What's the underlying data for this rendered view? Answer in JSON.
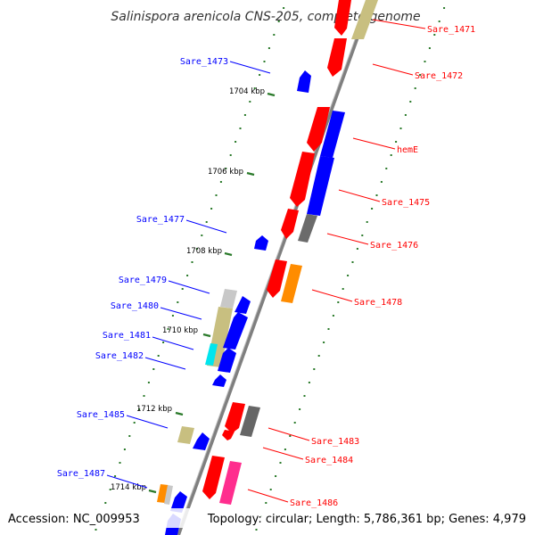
{
  "title": "Salinispora arenicola CNS-205, complete genome",
  "accession": "Accession: NC_009953",
  "summary": "Topology: circular; Length: 5,786,361 bp; Genes: 4,979",
  "ticks": [
    "1704 kbp",
    "1706 kbp",
    "1708 kbp",
    "1710 kbp",
    "1712 kbp",
    "1714 kbp"
  ],
  "genes_forward": [
    {
      "id": "Sare_1471",
      "color": "#ff0000"
    },
    {
      "id": "Sare_1472",
      "color": "#ff0000"
    },
    {
      "id": "hemE",
      "color": "#ff0000"
    },
    {
      "id": "Sare_1475",
      "color": "#ff0000"
    },
    {
      "id": "Sare_1476",
      "color": "#ff0000"
    },
    {
      "id": "Sare_1478",
      "color": "#ff0000"
    },
    {
      "id": "Sare_1483",
      "color": "#ff0000"
    },
    {
      "id": "Sare_1484",
      "color": "#ff0000"
    },
    {
      "id": "Sare_1486",
      "color": "#ff0000"
    }
  ],
  "genes_reverse": [
    {
      "id": "Sare_1473",
      "color": "#0000ff"
    },
    {
      "id": "Sare_1477",
      "color": "#0000ff"
    },
    {
      "id": "Sare_1479",
      "color": "#0000ff"
    },
    {
      "id": "Sare_1480",
      "color": "#0000ff"
    },
    {
      "id": "Sare_1481",
      "color": "#0000ff"
    },
    {
      "id": "Sare_1482",
      "color": "#0000ff"
    },
    {
      "id": "Sare_1485",
      "color": "#0000ff"
    },
    {
      "id": "Sare_1487",
      "color": "#0000ff"
    }
  ]
}
